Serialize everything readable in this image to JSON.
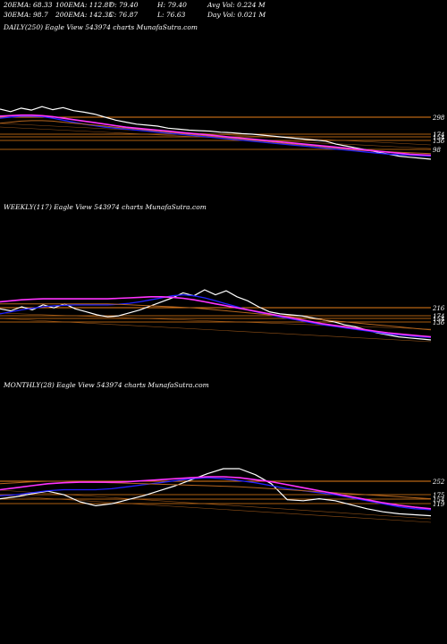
{
  "header": {
    "row1": [
      {
        "label": "20EMA: 68.33"
      },
      {
        "label": "100EMA: 112.87"
      },
      {
        "label": "O: 79.40"
      },
      {
        "label": "H: 79.40"
      },
      {
        "label": "Avg Vol: 0.224  M"
      }
    ],
    "row2": [
      {
        "label": "30EMA: 98.7"
      },
      {
        "label": "200EMA: 142.35"
      },
      {
        "label": "C: 76.87"
      },
      {
        "label": "L: 76.63"
      },
      {
        "label": "Day Vol: 0.021  M"
      }
    ]
  },
  "colors": {
    "background": "#000000",
    "price": "#ffffff",
    "ema_fast": "#2222ff",
    "ema_slow": "#ff33ff",
    "ema_brown": "#b5651d",
    "level_line": "#ff8c1a"
  },
  "chart_data": [
    {
      "type": "line",
      "title": "DAILY(250) Eagle  View  543974  charts MunafaSutra.com",
      "y_ticks": [
        "298",
        "174",
        "154",
        "136",
        "98"
      ],
      "series": [
        {
          "values": [
            1.0,
            0.95,
            1.02,
            0.98,
            1.05,
            0.99,
            1.03,
            0.97,
            0.94,
            0.9,
            0.84,
            0.78,
            0.74,
            0.7,
            0.68,
            0.66,
            0.62,
            0.6,
            0.58,
            0.57,
            0.56,
            0.54,
            0.53,
            0.51,
            0.5,
            0.48,
            0.46,
            0.44,
            0.42,
            0.4,
            0.38,
            0.36,
            0.3,
            0.26,
            0.22,
            0.18,
            0.14,
            0.1,
            0.06,
            0.04,
            0.02,
            0.0
          ]
        },
        {
          "values": [
            0.82,
            0.84,
            0.86,
            0.86,
            0.85,
            0.82,
            0.78,
            0.74,
            0.7,
            0.67,
            0.64,
            0.62,
            0.6,
            0.58,
            0.56,
            0.54,
            0.52,
            0.5,
            0.48,
            0.46,
            0.44,
            0.42,
            0.4,
            0.38,
            0.36,
            0.34,
            0.32,
            0.3,
            0.28,
            0.26,
            0.24,
            0.22,
            0.2,
            0.18,
            0.16,
            0.14,
            0.12,
            0.1,
            0.09,
            0.08,
            0.07,
            0.06
          ]
        },
        {
          "values": [
            0.72,
            0.74,
            0.76,
            0.77,
            0.77,
            0.76,
            0.74,
            0.72,
            0.7,
            0.68,
            0.66,
            0.64,
            0.62,
            0.6,
            0.58,
            0.56,
            0.54,
            0.52,
            0.5,
            0.48,
            0.46,
            0.44,
            0.42,
            0.4,
            0.38,
            0.36,
            0.34,
            0.32,
            0.3,
            0.28,
            0.26,
            0.24,
            0.22,
            0.2,
            0.18,
            0.17,
            0.16,
            0.15,
            0.14,
            0.13,
            0.12,
            0.11
          ]
        },
        {
          "values": [
            0.86,
            0.87,
            0.88,
            0.88,
            0.87,
            0.85,
            0.82,
            0.79,
            0.76,
            0.73,
            0.7,
            0.67,
            0.64,
            0.62,
            0.6,
            0.58,
            0.56,
            0.54,
            0.52,
            0.5,
            0.48,
            0.46,
            0.44,
            0.42,
            0.4,
            0.38,
            0.36,
            0.34,
            0.32,
            0.3,
            0.28,
            0.26,
            0.24,
            0.22,
            0.2,
            0.18,
            0.16,
            0.14,
            0.12,
            0.1,
            0.09,
            0.08
          ]
        }
      ]
    },
    {
      "type": "line",
      "title": "WEEKLY(117) Eagle  View  543974  charts MunafaSutra.com",
      "y_ticks": [
        "216",
        "174",
        "154",
        "136"
      ],
      "series": [
        {
          "values": [
            0.62,
            0.58,
            0.66,
            0.6,
            0.7,
            0.64,
            0.72,
            0.62,
            0.56,
            0.5,
            0.46,
            0.48,
            0.54,
            0.6,
            0.68,
            0.76,
            0.84,
            0.94,
            0.88,
            1.0,
            0.9,
            0.98,
            0.86,
            0.78,
            0.66,
            0.56,
            0.52,
            0.5,
            0.48,
            0.44,
            0.4,
            0.36,
            0.3,
            0.26,
            0.2,
            0.14,
            0.1,
            0.06,
            0.04,
            0.02,
            0.0
          ]
        },
        {
          "values": [
            0.52,
            0.56,
            0.6,
            0.63,
            0.66,
            0.68,
            0.69,
            0.7,
            0.7,
            0.7,
            0.7,
            0.71,
            0.73,
            0.76,
            0.8,
            0.84,
            0.88,
            0.9,
            0.88,
            0.84,
            0.78,
            0.72,
            0.66,
            0.6,
            0.55,
            0.5,
            0.46,
            0.42,
            0.38,
            0.34,
            0.3,
            0.27,
            0.24,
            0.21,
            0.18,
            0.15,
            0.12,
            0.1,
            0.08,
            0.06,
            0.05
          ]
        },
        {
          "values": [
            0.72,
            0.72,
            0.72,
            0.72,
            0.72,
            0.72,
            0.72,
            0.72,
            0.72,
            0.72,
            0.72,
            0.71,
            0.7,
            0.69,
            0.68,
            0.67,
            0.66,
            0.65,
            0.64,
            0.62,
            0.6,
            0.58,
            0.56,
            0.54,
            0.52,
            0.5,
            0.48,
            0.46,
            0.44,
            0.42,
            0.4,
            0.38,
            0.36,
            0.34,
            0.32,
            0.3,
            0.28,
            0.26,
            0.24,
            0.22,
            0.2
          ]
        },
        {
          "values": [
            0.76,
            0.78,
            0.8,
            0.81,
            0.82,
            0.82,
            0.82,
            0.82,
            0.82,
            0.82,
            0.82,
            0.83,
            0.84,
            0.85,
            0.86,
            0.86,
            0.85,
            0.83,
            0.8,
            0.76,
            0.72,
            0.68,
            0.64,
            0.6,
            0.56,
            0.52,
            0.48,
            0.44,
            0.4,
            0.36,
            0.32,
            0.29,
            0.26,
            0.23,
            0.2,
            0.17,
            0.14,
            0.12,
            0.1,
            0.08,
            0.06
          ]
        }
      ]
    },
    {
      "type": "line",
      "title": "MONTHLY(28) Eagle  View  543974  charts MunafaSutra.com",
      "y_ticks": [
        "252",
        "175",
        "154",
        "119"
      ],
      "series": [
        {
          "values": [
            0.4,
            0.44,
            0.5,
            0.55,
            0.48,
            0.34,
            0.26,
            0.3,
            0.38,
            0.46,
            0.56,
            0.66,
            0.78,
            0.9,
            1.0,
            1.0,
            0.88,
            0.7,
            0.38,
            0.36,
            0.4,
            0.36,
            0.28,
            0.2,
            0.14,
            0.1,
            0.08,
            0.06
          ]
        },
        {
          "values": [
            0.46,
            0.48,
            0.52,
            0.56,
            0.58,
            0.58,
            0.58,
            0.6,
            0.64,
            0.68,
            0.72,
            0.76,
            0.8,
            0.82,
            0.8,
            0.76,
            0.72,
            0.66,
            0.6,
            0.56,
            0.52,
            0.48,
            0.42,
            0.36,
            0.3,
            0.24,
            0.2,
            0.18
          ]
        },
        {
          "values": [
            0.7,
            0.72,
            0.74,
            0.75,
            0.75,
            0.74,
            0.73,
            0.72,
            0.71,
            0.7,
            0.69,
            0.68,
            0.67,
            0.66,
            0.65,
            0.64,
            0.62,
            0.6,
            0.58,
            0.56,
            0.54,
            0.52,
            0.5,
            0.48,
            0.46,
            0.44,
            0.42,
            0.4
          ]
        },
        {
          "values": [
            0.58,
            0.62,
            0.66,
            0.7,
            0.72,
            0.73,
            0.73,
            0.73,
            0.74,
            0.76,
            0.78,
            0.8,
            0.82,
            0.84,
            0.84,
            0.82,
            0.78,
            0.74,
            0.68,
            0.62,
            0.56,
            0.5,
            0.44,
            0.38,
            0.32,
            0.27,
            0.23,
            0.2
          ]
        }
      ]
    }
  ]
}
